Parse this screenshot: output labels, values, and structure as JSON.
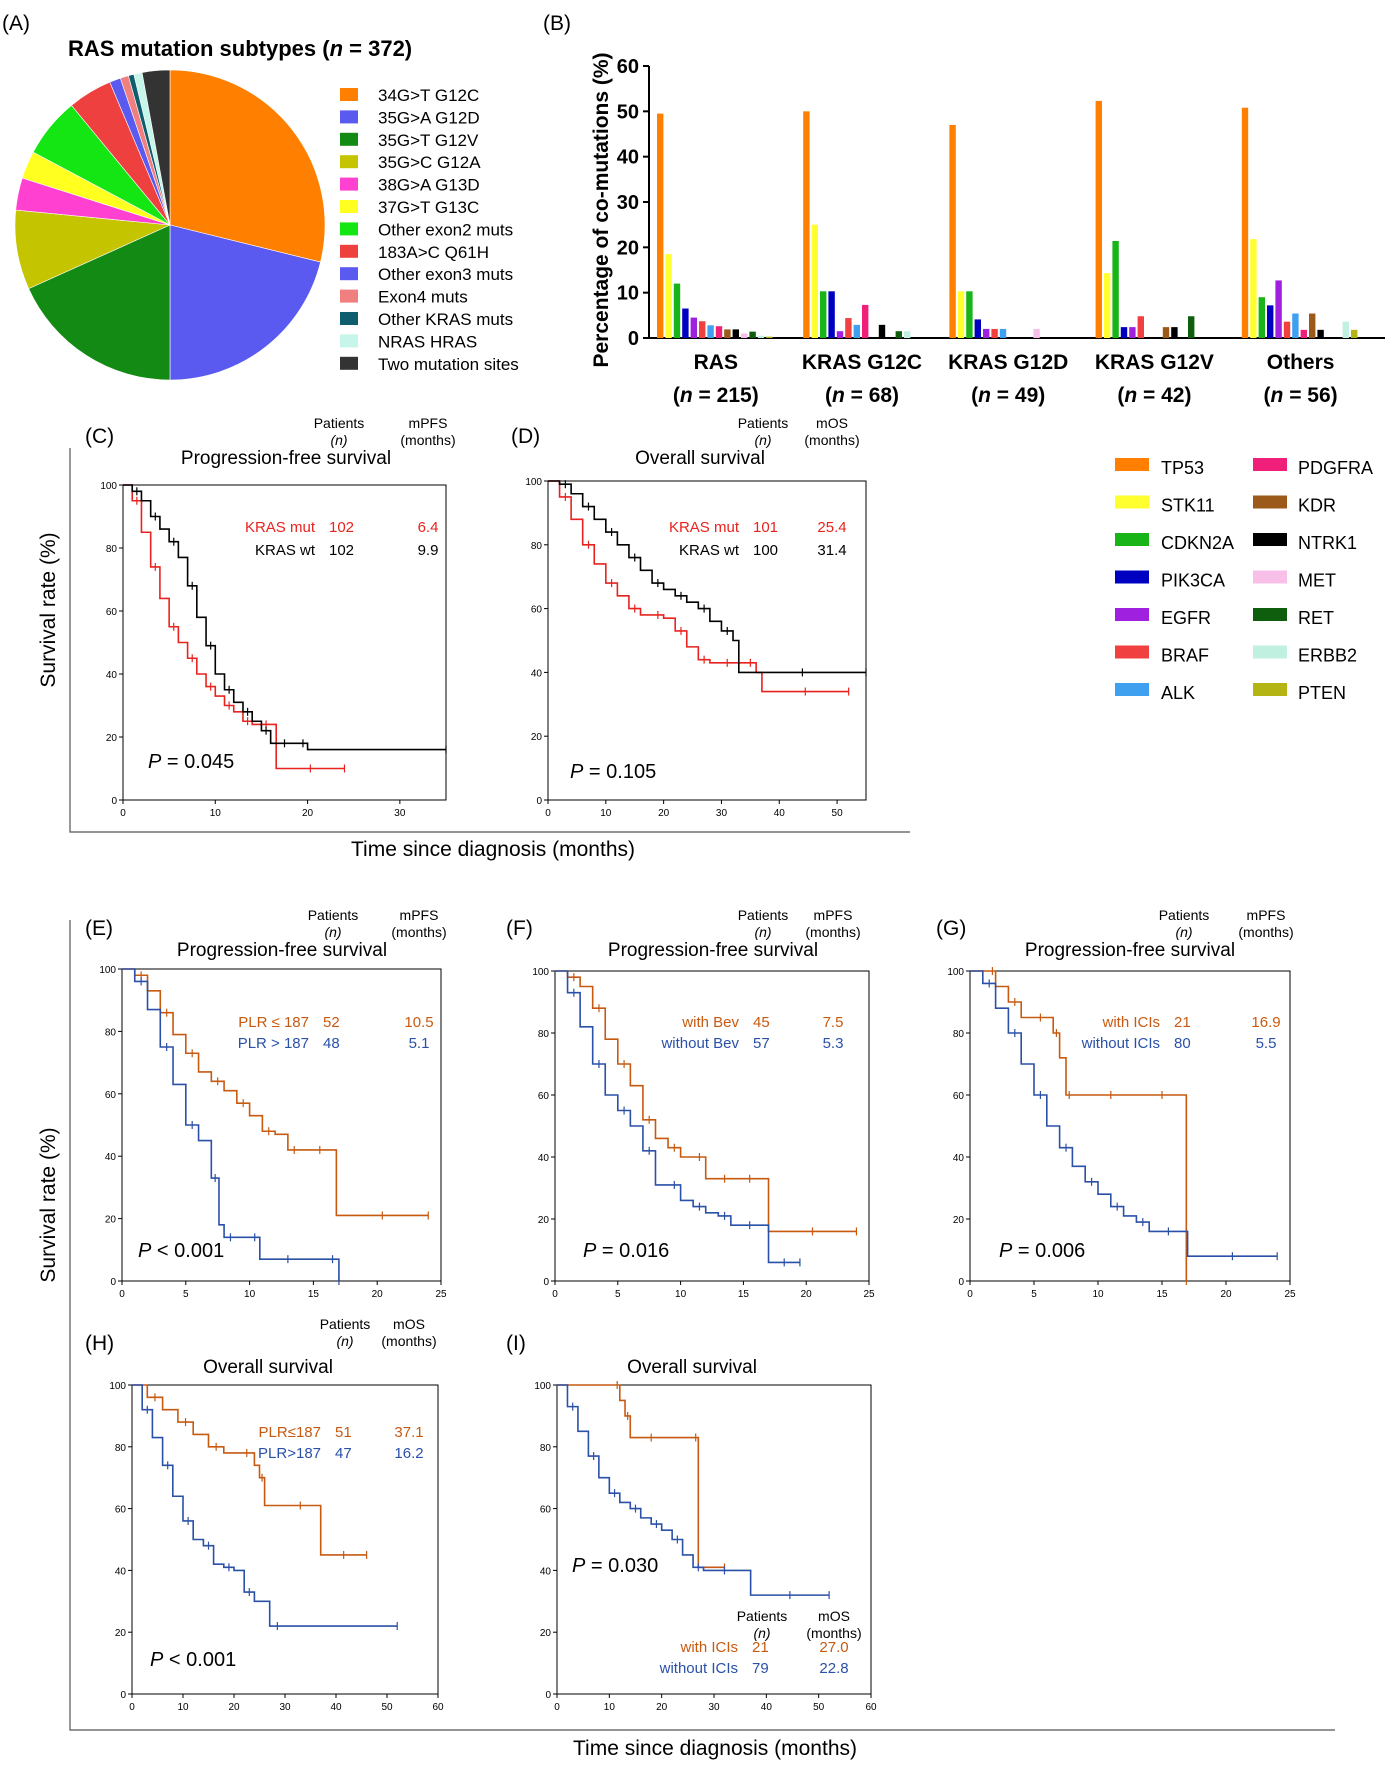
{
  "chart_data": [
    {
      "id": "A",
      "panel_label": "(A)",
      "type": "pie",
      "title_prefix": "RAS mutation subtypes (",
      "title_n": "n",
      "title_suffix": " = 372)",
      "slices": [
        {
          "label": "34G>T  G12C",
          "value": 30.0,
          "color": "#ff8000"
        },
        {
          "label": "35G>A  G12D",
          "value": 22.0,
          "color": "#5a5af0"
        },
        {
          "label": "35G>T  G12V",
          "value": 19.0,
          "color": "#138a13"
        },
        {
          "label": "35G>C  G12A",
          "value": 8.6,
          "color": "#c4c400"
        },
        {
          "label": "38G>A  G13D",
          "value": 3.5,
          "color": "#ff40d0"
        },
        {
          "label": "37G>T  G13C",
          "value": 3.0,
          "color": "#ffff20"
        },
        {
          "label": "Other exon2 muts",
          "value": 6.5,
          "color": "#14e614"
        },
        {
          "label": "183A>C  Q61H",
          "value": 4.8,
          "color": "#ef4040"
        },
        {
          "label": "Other exon3 muts",
          "value": 1.2,
          "color": "#5a5af0"
        },
        {
          "label": "Exon4 muts",
          "value": 0.9,
          "color": "#f08080"
        },
        {
          "label": "Other KRAS muts",
          "value": 0.6,
          "color": "#0e5e6e"
        },
        {
          "label": "NRAS HRAS",
          "value": 0.9,
          "color": "#c6f5ea"
        },
        {
          "label": "Two mutation sites",
          "value": 3.0,
          "color": "#333333"
        }
      ]
    },
    {
      "id": "B",
      "panel_label": "(B)",
      "type": "bar",
      "ylabel": "Percentage of co-mutations (%)",
      "ylim": [
        0,
        60
      ],
      "yticks": [
        0,
        10,
        20,
        30,
        40,
        50,
        60
      ],
      "groups": [
        {
          "name": "RAS",
          "n": "215"
        },
        {
          "name": "KRAS G12C",
          "n": "68"
        },
        {
          "name": "KRAS G12D",
          "n": "49"
        },
        {
          "name": "KRAS G12V",
          "n": "42"
        },
        {
          "name": "Others",
          "n": "56"
        }
      ],
      "n_prefix": "(",
      "n_symbol": "n",
      "n_suffix": ")",
      "n_equals": " = ",
      "series": [
        {
          "name": "TP53",
          "color": "#ff8000",
          "values": [
            49.5,
            50,
            47,
            52.3,
            50.8
          ]
        },
        {
          "name": "STK11",
          "color": "#ffff30",
          "values": [
            18.5,
            25,
            10.3,
            14.3,
            21.8
          ]
        },
        {
          "name": "CDKN2A",
          "color": "#18b418",
          "values": [
            12,
            10.3,
            10.3,
            21.4,
            9.0
          ]
        },
        {
          "name": "PIK3CA",
          "color": "#0000c0",
          "values": [
            6.5,
            10.3,
            4.1,
            2.4,
            7.2
          ]
        },
        {
          "name": "EGFR",
          "color": "#a020e0",
          "values": [
            4.5,
            1.5,
            2.0,
            2.4,
            12.7
          ]
        },
        {
          "name": "BRAF",
          "color": "#f04040",
          "values": [
            3.7,
            4.4,
            2.0,
            4.8,
            3.6
          ]
        },
        {
          "name": "ALK",
          "color": "#40a0f0",
          "values": [
            2.8,
            2.9,
            2.0,
            0,
            5.4
          ]
        },
        {
          "name": "PDGFRA",
          "color": "#f0207a",
          "values": [
            2.6,
            7.3,
            0,
            0,
            1.8
          ]
        },
        {
          "name": "KDR",
          "color": "#9c5a1a",
          "values": [
            1.9,
            0,
            0,
            2.4,
            5.4
          ]
        },
        {
          "name": "NTRK1",
          "color": "#000000",
          "values": [
            1.9,
            2.9,
            0,
            2.4,
            1.8
          ]
        },
        {
          "name": "MET",
          "color": "#f8c0e8",
          "values": [
            1.0,
            0,
            2.0,
            0,
            0
          ]
        },
        {
          "name": "RET",
          "color": "#0e5e0e",
          "values": [
            1.4,
            1.5,
            0,
            4.8,
            0
          ]
        },
        {
          "name": "ERBB2",
          "color": "#c0f0e0",
          "values": [
            0.5,
            1.5,
            0,
            0,
            3.6
          ]
        },
        {
          "name": "PTEN",
          "color": "#b4b414",
          "values": [
            0.3,
            0,
            0,
            0,
            1.8
          ]
        }
      ]
    },
    {
      "id": "C",
      "panel_label": "(C)",
      "type": "line",
      "title": "Progression-free survival",
      "xlim": [
        0,
        35
      ],
      "xticks": [
        0,
        10,
        20,
        30
      ],
      "ylim": [
        0,
        100
      ],
      "yticks": [
        0,
        20,
        40,
        60,
        80,
        100
      ],
      "p_symbol": "P",
      "p_text": " = 0.045",
      "table_head": [
        "Patients",
        "(n)",
        "mPFS",
        "(months)"
      ],
      "series": [
        {
          "name": "KRAS mut",
          "n": "102",
          "median": "6.4",
          "color": "#e8231f",
          "x": [
            0,
            1,
            2,
            3,
            4,
            5,
            6,
            7,
            8,
            9,
            10,
            11,
            12,
            13,
            14,
            15,
            16,
            16.6,
            24
          ],
          "y": [
            100,
            95,
            85,
            74,
            64,
            55,
            50,
            45,
            40,
            36,
            33,
            30,
            28,
            25,
            24,
            24,
            24,
            10,
            10
          ]
        },
        {
          "name": "KRAS wt",
          "n": "102",
          "median": "9.9",
          "color": "#000000",
          "x": [
            0,
            1,
            2,
            3,
            4,
            5,
            6,
            7,
            8,
            9,
            10,
            11,
            12,
            13,
            14,
            15,
            16,
            17,
            18,
            19,
            20,
            35
          ],
          "y": [
            100,
            98,
            95,
            90,
            86,
            82,
            77,
            68,
            58,
            49,
            40,
            35,
            31,
            28,
            25,
            22,
            18,
            18,
            18,
            18,
            16,
            16
          ]
        }
      ]
    },
    {
      "id": "D",
      "panel_label": "(D)",
      "type": "line",
      "title": "Overall survival",
      "xlim": [
        0,
        55
      ],
      "xticks": [
        0,
        10,
        20,
        30,
        40,
        50
      ],
      "ylim": [
        0,
        100
      ],
      "yticks": [
        0,
        20,
        40,
        60,
        80,
        100
      ],
      "p_symbol": "P",
      "p_text": " = 0.105",
      "table_head": [
        "Patients",
        "(n)",
        "mOS",
        "(months)"
      ],
      "series": [
        {
          "name": "KRAS mut",
          "n": "101",
          "median": "25.4",
          "color": "#e8231f",
          "x": [
            0,
            2,
            4,
            6,
            8,
            10,
            12,
            14,
            16,
            18,
            20,
            22,
            24,
            26,
            28,
            30,
            32,
            34,
            36,
            37,
            52
          ],
          "y": [
            100,
            95,
            88,
            80,
            74,
            68,
            64,
            60,
            58,
            58,
            57,
            53,
            48,
            44,
            43,
            43,
            43,
            43,
            40,
            34,
            34
          ]
        },
        {
          "name": "KRAS wt",
          "n": "100",
          "median": "31.4",
          "color": "#000000",
          "x": [
            0,
            2,
            4,
            6,
            8,
            10,
            12,
            14,
            16,
            18,
            20,
            22,
            24,
            26,
            28,
            30,
            32,
            33,
            55
          ],
          "y": [
            100,
            99,
            96,
            92,
            88,
            84,
            80,
            76,
            72,
            68,
            66,
            64,
            62,
            60,
            56,
            53,
            50,
            40,
            40
          ]
        }
      ]
    },
    {
      "id": "E",
      "panel_label": "(E)",
      "type": "line",
      "title": "Progression-free survival",
      "xlim": [
        0,
        25
      ],
      "xticks": [
        0,
        5,
        10,
        15,
        20,
        25
      ],
      "ylim": [
        0,
        100
      ],
      "yticks": [
        0,
        20,
        40,
        60,
        80,
        100
      ],
      "p_symbol": "P",
      "p_text": " < 0.001",
      "table_head": [
        "Patients",
        "(n)",
        "mPFS",
        "(months)"
      ],
      "series": [
        {
          "name": "PLR ≤ 187",
          "n": "52",
          "median": "10.5",
          "color": "#c75a10",
          "x": [
            0,
            1,
            2,
            3,
            4,
            5,
            6,
            7,
            8,
            9,
            10,
            11,
            12,
            13,
            14,
            15,
            16,
            16.8,
            24
          ],
          "y": [
            100,
            98,
            93,
            86,
            79,
            73,
            67,
            64,
            61,
            57,
            53,
            48,
            47,
            42,
            42,
            42,
            42,
            21,
            21
          ]
        },
        {
          "name": "PLR > 187",
          "n": "48",
          "median": "5.1",
          "color": "#2a50a8",
          "x": [
            0,
            1,
            2,
            3,
            4,
            5,
            6,
            7,
            7.6,
            8,
            9,
            10,
            10.8,
            12,
            14,
            16,
            17
          ],
          "y": [
            100,
            96,
            87,
            75,
            63,
            50,
            45,
            33,
            18,
            14,
            14,
            14,
            7,
            7,
            7,
            7,
            0
          ]
        }
      ]
    },
    {
      "id": "F",
      "panel_label": "(F)",
      "type": "line",
      "title": "Progression-free survival",
      "xlim": [
        0,
        25
      ],
      "xticks": [
        0,
        5,
        10,
        15,
        20,
        25
      ],
      "ylim": [
        0,
        100
      ],
      "yticks": [
        0,
        20,
        40,
        60,
        80,
        100
      ],
      "p_symbol": "P",
      "p_text": " = 0.016",
      "table_head": [
        "Patients",
        "(n)",
        "mPFS",
        "(months)"
      ],
      "series": [
        {
          "name": "with Bev",
          "n": "45",
          "median": "7.5",
          "color": "#c75a10",
          "x": [
            0,
            1,
            2,
            3,
            4,
            5,
            6,
            7,
            8,
            9,
            10,
            11,
            12,
            13,
            14,
            15,
            16,
            17,
            24
          ],
          "y": [
            100,
            98,
            95,
            88,
            78,
            70,
            63,
            52,
            46,
            43,
            40,
            40,
            33,
            33,
            33,
            33,
            33,
            16,
            16
          ]
        },
        {
          "name": "without Bev",
          "n": "57",
          "median": "5.3",
          "color": "#2a50a8",
          "x": [
            0,
            1,
            2,
            3,
            4,
            5,
            6,
            7,
            8,
            9,
            10,
            11,
            12,
            13,
            14,
            15,
            16,
            17,
            19.5
          ],
          "y": [
            100,
            93,
            82,
            70,
            60,
            55,
            50,
            42,
            31,
            31,
            26,
            24,
            22,
            21,
            18,
            18,
            18,
            6,
            6
          ]
        }
      ]
    },
    {
      "id": "G",
      "panel_label": "(G)",
      "type": "line",
      "title": "Progression-free survival",
      "xlim": [
        0,
        25
      ],
      "xticks": [
        0,
        5,
        10,
        15,
        20,
        25
      ],
      "ylim": [
        0,
        100
      ],
      "yticks": [
        0,
        20,
        40,
        60,
        80,
        100
      ],
      "p_symbol": "P",
      "p_text": " = 0.006",
      "table_head": [
        "Patients",
        "(n)",
        "mPFS",
        "(months)"
      ],
      "series": [
        {
          "name": "with ICIs",
          "n": "21",
          "median": "16.9",
          "color": "#c75a10",
          "x": [
            0,
            1.5,
            2,
            3,
            4,
            5,
            6,
            6.5,
            7,
            7.5,
            8,
            10,
            12,
            14,
            16,
            16.9
          ],
          "y": [
            100,
            100,
            95,
            90,
            85,
            85,
            85,
            80,
            72,
            60,
            60,
            60,
            60,
            60,
            60,
            0
          ]
        },
        {
          "name": "without ICIs",
          "n": "80",
          "median": "5.5",
          "color": "#2a50a8",
          "x": [
            0,
            1,
            2,
            3,
            4,
            5,
            6,
            7,
            8,
            9,
            10,
            11,
            12,
            13,
            14,
            15,
            16,
            17,
            24
          ],
          "y": [
            100,
            96,
            88,
            80,
            70,
            60,
            50,
            43,
            37,
            32,
            28,
            24,
            21,
            19,
            16,
            16,
            16,
            8,
            8
          ]
        }
      ]
    },
    {
      "id": "H",
      "panel_label": "(H)",
      "type": "line",
      "title": "Overall survival",
      "xlim": [
        0,
        60
      ],
      "xticks": [
        0,
        10,
        20,
        30,
        40,
        50,
        60
      ],
      "ylim": [
        0,
        100
      ],
      "yticks": [
        0,
        20,
        40,
        60,
        80,
        100
      ],
      "p_symbol": "P",
      "p_text": " < 0.001",
      "table_head": [
        "Patients",
        "(n)",
        "mOS",
        "(months)"
      ],
      "series": [
        {
          "name": "PLR≤187",
          "n": "51",
          "median": "37.1",
          "color": "#c75a10",
          "x": [
            0,
            3,
            6,
            9,
            12,
            15,
            18,
            21,
            24,
            25,
            26,
            30,
            36,
            37,
            46
          ],
          "y": [
            100,
            96,
            92,
            88,
            84,
            80,
            78,
            78,
            74,
            70,
            61,
            61,
            61,
            45,
            45
          ]
        },
        {
          "name": "PLR>187",
          "n": "47",
          "median": "16.2",
          "color": "#2a50a8",
          "x": [
            0,
            2,
            4,
            6,
            8,
            10,
            12,
            14,
            16,
            18,
            20,
            22,
            24,
            27,
            30,
            52
          ],
          "y": [
            100,
            92,
            83,
            74,
            64,
            56,
            50,
            48,
            42,
            41,
            40,
            33,
            30,
            22,
            22,
            22
          ]
        }
      ]
    },
    {
      "id": "I",
      "panel_label": "(I)",
      "type": "line",
      "title": "Overall survival",
      "xlim": [
        0,
        60
      ],
      "xticks": [
        0,
        10,
        20,
        30,
        40,
        50,
        60
      ],
      "ylim": [
        0,
        100
      ],
      "yticks": [
        0,
        20,
        40,
        60,
        80,
        100
      ],
      "p_symbol": "P",
      "p_text": " = 0.030",
      "table_head": [
        "Patients",
        "(n)",
        "mOS",
        "(months)"
      ],
      "series": [
        {
          "name": "with ICIs",
          "n": "21",
          "median": "27.0",
          "color": "#c75a10",
          "x": [
            0,
            11,
            12,
            13,
            14,
            16,
            20,
            26,
            27,
            32
          ],
          "y": [
            100,
            100,
            95,
            90,
            83,
            83,
            83,
            83,
            41,
            41
          ]
        },
        {
          "name": "without ICIs",
          "n": "79",
          "median": "22.8",
          "color": "#2a50a8",
          "x": [
            0,
            2,
            4,
            6,
            8,
            10,
            12,
            14,
            16,
            18,
            20,
            22,
            24,
            26,
            28,
            30,
            34,
            37,
            52
          ],
          "y": [
            100,
            93,
            85,
            77,
            70,
            65,
            62,
            60,
            57,
            55,
            53,
            50,
            45,
            41,
            40,
            40,
            40,
            32,
            32
          ]
        }
      ]
    }
  ],
  "shared": {
    "survival_ylabel": "Survival rate (%)",
    "time_xlabel": "Time since diagnosis (months)"
  }
}
